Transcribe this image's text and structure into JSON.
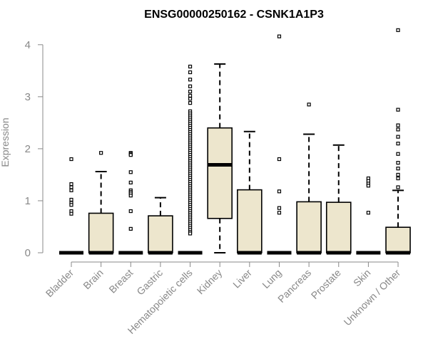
{
  "chart_data": {
    "type": "box",
    "title": "ENSG00000250162 - CSNK1A1P3",
    "xlabel": "",
    "ylabel": "Expression",
    "ylim": [
      0,
      4.3
    ],
    "yticks": [
      0,
      1,
      2,
      3,
      4
    ],
    "box_fill": "#ede6cd",
    "outline_color": "#000000",
    "axis_color": "#888888",
    "categories": [
      "Bladder",
      "Brain",
      "Breast",
      "Gastric",
      "Hematopoietic cells",
      "Kidney",
      "Liver",
      "Lung",
      "Pancreas",
      "Prostate",
      "Skin",
      "Unknown / Other"
    ],
    "boxes": [
      {
        "category": "Bladder",
        "min": 0,
        "q1": 0,
        "median": 0,
        "q3": 0,
        "max": 0,
        "outliers": [
          1.8,
          1.32,
          1.26,
          1.2,
          1.02,
          0.96,
          0.92,
          0.8,
          0.75
        ]
      },
      {
        "category": "Brain",
        "min": 0,
        "q1": 0,
        "median": 0,
        "q3": 0.76,
        "max": 1.56,
        "outliers": [
          1.92
        ]
      },
      {
        "category": "Breast",
        "min": 0,
        "q1": 0,
        "median": 0,
        "q3": 0,
        "max": 0,
        "outliers": [
          1.92,
          1.9,
          1.88,
          1.55,
          1.35,
          1.2,
          1.17,
          1.14,
          1.1,
          0.8,
          0.46
        ]
      },
      {
        "category": "Gastric",
        "min": 0,
        "q1": 0,
        "median": 0,
        "q3": 0.71,
        "max": 1.06,
        "outliers": []
      },
      {
        "category": "Hematopoietic cells",
        "min": 0,
        "q1": 0,
        "median": 0,
        "q3": 0,
        "max": 0,
        "outliers": [
          3.58,
          3.47,
          3.33,
          3.2,
          3.1,
          3.02,
          2.96,
          2.88,
          2.72,
          2.68,
          2.64,
          2.6,
          2.56,
          2.52,
          2.48,
          2.44,
          2.4,
          2.36,
          2.32,
          2.28,
          2.24,
          2.2,
          2.16,
          2.12,
          2.08,
          2.04,
          2.0,
          1.96,
          1.92,
          1.88,
          1.84,
          1.8,
          1.76,
          1.72,
          1.68,
          1.64,
          1.6,
          1.56,
          1.52,
          1.48,
          1.44,
          1.4,
          1.36,
          1.32,
          1.28,
          1.24,
          1.2,
          1.16,
          1.12,
          1.08,
          1.04,
          1.0,
          0.96,
          0.92,
          0.88,
          0.84,
          0.8,
          0.76,
          0.72,
          0.68,
          0.64,
          0.6,
          0.56,
          0.52,
          0.48,
          0.44,
          0.4,
          0.37
        ]
      },
      {
        "category": "Kidney",
        "min": 0,
        "q1": 0.66,
        "median": 1.69,
        "q3": 2.4,
        "max": 3.63,
        "outliers": []
      },
      {
        "category": "Liver",
        "min": 0,
        "q1": 0,
        "median": 0,
        "q3": 1.21,
        "max": 2.33,
        "outliers": []
      },
      {
        "category": "Lung",
        "min": 0,
        "q1": 0,
        "median": 0,
        "q3": 0,
        "max": 0,
        "outliers": [
          4.16,
          1.8,
          1.18,
          0.86,
          0.77
        ]
      },
      {
        "category": "Pancreas",
        "min": 0,
        "q1": 0,
        "median": 0,
        "q3": 0.98,
        "max": 2.28,
        "outliers": [
          2.85
        ]
      },
      {
        "category": "Prostate",
        "min": 0,
        "q1": 0,
        "median": 0,
        "q3": 0.97,
        "max": 2.07,
        "outliers": []
      },
      {
        "category": "Skin",
        "min": 0,
        "q1": 0,
        "median": 0,
        "q3": 0,
        "max": 0,
        "outliers": [
          1.43,
          1.38,
          1.33,
          1.29,
          0.77
        ]
      },
      {
        "category": "Unknown / Other",
        "min": 0,
        "q1": 0,
        "median": 0,
        "q3": 0.49,
        "max": 1.2,
        "outliers": [
          4.28,
          2.75,
          2.45,
          2.37,
          2.23,
          2.1,
          1.9,
          1.73,
          1.62,
          1.5,
          1.43,
          1.26
        ]
      }
    ]
  }
}
